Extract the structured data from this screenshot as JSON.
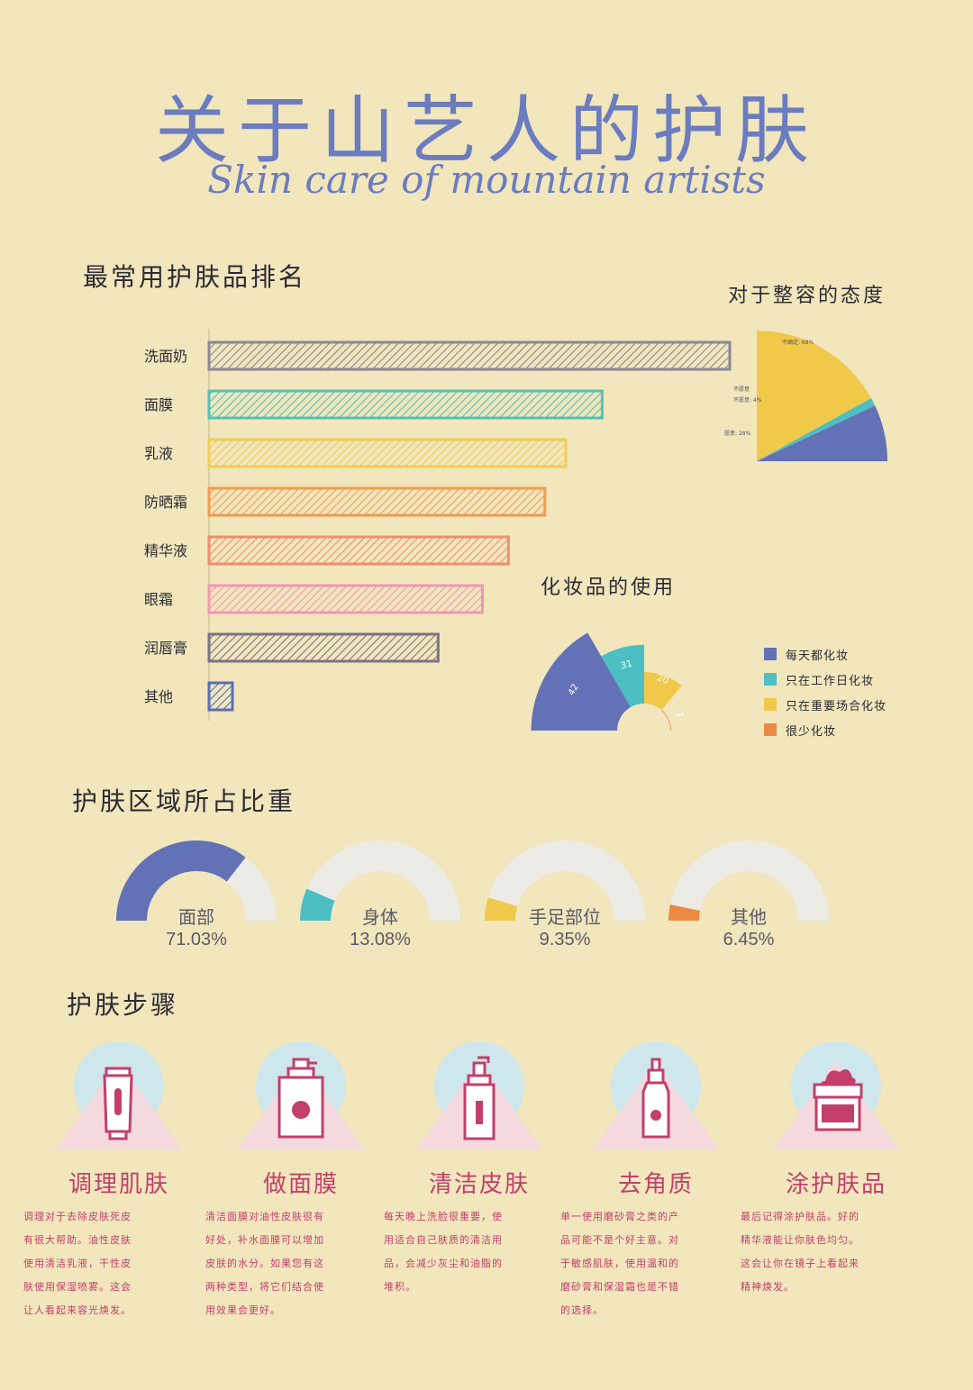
{
  "header": {
    "title_cn": "关于山艺人的护肤",
    "title_en": "Skin care of mountain artists"
  },
  "colors": {
    "background": "#f1e6bc",
    "blue": "#6371b6",
    "teal": "#4dbfc4",
    "yellow": "#f1c94a",
    "orange": "#ec8a43",
    "salmon": "#ee9276",
    "pink": "#ef9fb8",
    "gray": "#b8b5b6",
    "accent_text": "#c23f6c"
  },
  "sections": {
    "ranking_title": "最常用护肤品排名",
    "plastic_title": "对于整容的态度",
    "makeup_title": "化妆品的使用",
    "area_title": "护肤区域所占比重",
    "steps_title": "护肤步骤"
  },
  "chart_data": [
    {
      "type": "bar",
      "orientation": "horizontal",
      "categories": [
        "洗面奶",
        "面膜",
        "乳液",
        "防晒霜",
        "精华液",
        "眼霜",
        "润唇膏",
        "其他"
      ],
      "values": [
        100,
        75.5,
        68.5,
        64.5,
        57.5,
        52.5,
        44,
        4.5
      ],
      "colors": [
        "#8a8796",
        "#55c1b6",
        "#f0cd58",
        "#ef9d55",
        "#ee8e70",
        "#ef98b2",
        "#7b7385",
        "#5a6fb3"
      ]
    },
    {
      "type": "pie",
      "slices": [
        {
          "label": "不确定: 68%",
          "value": 68,
          "color": "#f1c94a"
        },
        {
          "label": "不愿意: 4%",
          "value": 4,
          "color": "#4dbfc4"
        },
        {
          "label": "愿意: 28%",
          "value": 28,
          "color": "#6371b6"
        }
      ]
    },
    {
      "type": "pie",
      "variant": "rose",
      "slices": [
        {
          "label": "42",
          "legend": "每天都化妆",
          "value": 42,
          "color": "#6371b6"
        },
        {
          "label": "31",
          "legend": "只在工作日化妆",
          "value": 31,
          "color": "#4dbfc4"
        },
        {
          "label": "20",
          "legend": "只在重要场合化妆",
          "value": 20,
          "color": "#f1c94a"
        },
        {
          "label": "7",
          "legend": "很少化妆",
          "value": 7,
          "color": "#ec8a43"
        }
      ]
    },
    {
      "type": "gauge",
      "items": [
        {
          "name": "面部",
          "percent_label": "71.03%",
          "value": 71.03,
          "color": "#6371b6"
        },
        {
          "name": "身体",
          "percent_label": "13.08%",
          "value": 13.08,
          "color": "#4dbfc4"
        },
        {
          "name": "手足部位",
          "percent_label": "9.35%",
          "value": 9.35,
          "color": "#f1c94a"
        },
        {
          "name": "其他",
          "percent_label": "6.45%",
          "value": 6.45,
          "color": "#ec8a43"
        }
      ]
    }
  ],
  "plastic_labels": {
    "uncertain": "不确定: 68%",
    "unwilling_line1": "不愿意",
    "unwilling_line2": "不愿意: 4%",
    "willing": "愿意: 28%"
  },
  "steps": [
    {
      "icon": "tube-icon",
      "title": "调理肌肤",
      "lines": [
        "调理对于去除皮肤死皮",
        "有很大帮助。油性皮肤",
        "使用清洁乳液，干性皮",
        "肤使用保湿喷雾。这会",
        "让人看起来容光焕发。"
      ]
    },
    {
      "icon": "mask-jar-icon",
      "title": "做面膜",
      "lines": [
        "清洁面膜对油性皮肤很有",
        "好处，补水面膜可以增加",
        "皮肤的水分。如果您有这",
        "两种类型，将它们结合使",
        "用效果会更好。"
      ]
    },
    {
      "icon": "pump-bottle-icon",
      "title": "清洁皮肤",
      "lines": [
        "每天晚上洗脸很重要，使",
        "用适合自己肤质的清洁用",
        "品，会减少灰尘和油脂的",
        "堆积。"
      ]
    },
    {
      "icon": "spray-bottle-icon",
      "title": "去角质",
      "lines": [
        "单一使用磨砂膏之类的产",
        "品可能不是个好主意。对",
        "于敏感肌肤，使用温和的",
        "磨砂膏和保湿霜也是不错",
        "的选择。"
      ]
    },
    {
      "icon": "cream-jar-icon",
      "title": "涂护肤品",
      "lines": [
        "最后记得涂护肤品。好的",
        "精华液能让你肤色均匀。",
        "这会让你在镜子上看起来",
        "精神焕发。"
      ]
    }
  ]
}
